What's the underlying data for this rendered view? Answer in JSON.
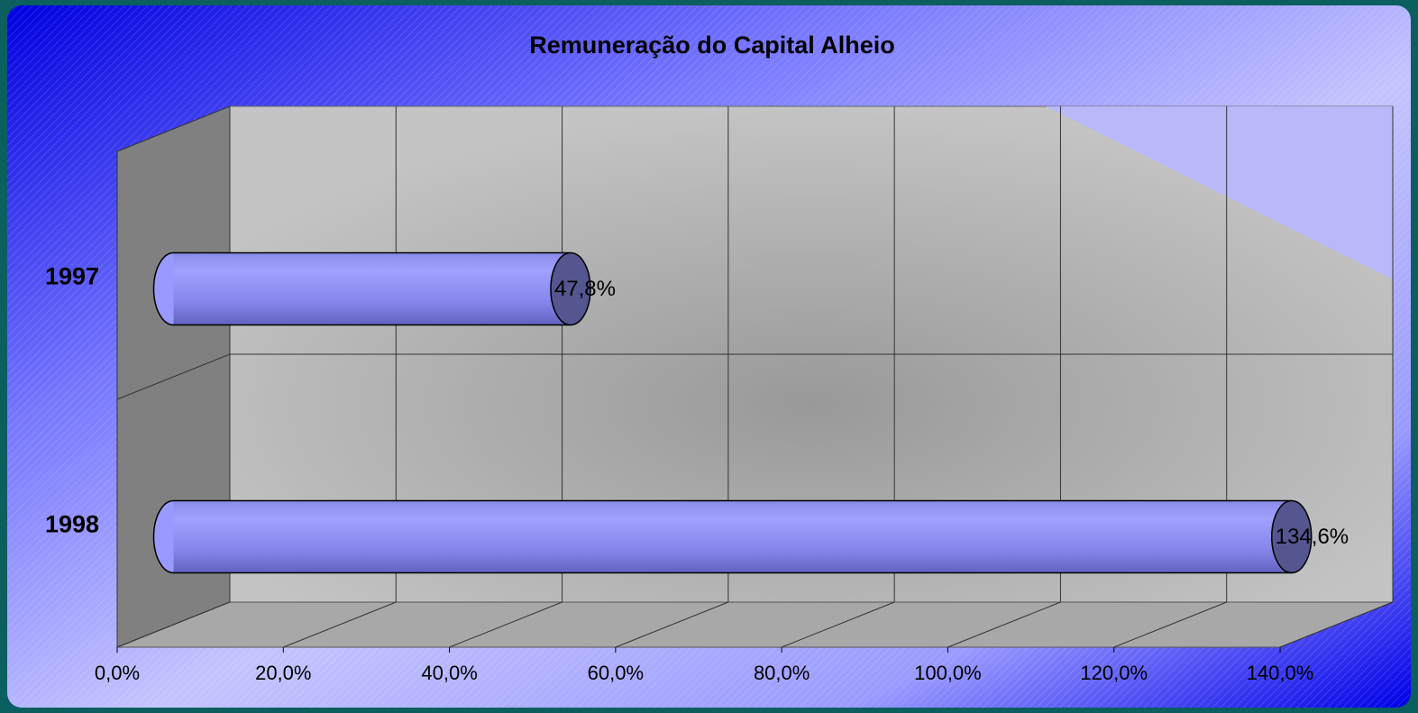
{
  "chart_data": {
    "type": "bar",
    "orientation": "horizontal",
    "title": "Remuneração do Capital Alheio",
    "categories": [
      "1997",
      "1998"
    ],
    "values": [
      47.8,
      134.6
    ],
    "value_labels": [
      "47,8%",
      "134,6%"
    ],
    "color": "#9999ff",
    "xlim": [
      0,
      140
    ],
    "xticks": [
      {
        "value": 0,
        "label": "0,0%"
      },
      {
        "value": 20,
        "label": "20,0%"
      },
      {
        "value": 40,
        "label": "40,0%"
      },
      {
        "value": 60,
        "label": "60,0%"
      },
      {
        "value": 80,
        "label": "80,0%"
      },
      {
        "value": 100,
        "label": "100,0%"
      },
      {
        "value": 120,
        "label": "120,0%"
      },
      {
        "value": 140,
        "label": "140,0%"
      }
    ],
    "grid": true
  }
}
